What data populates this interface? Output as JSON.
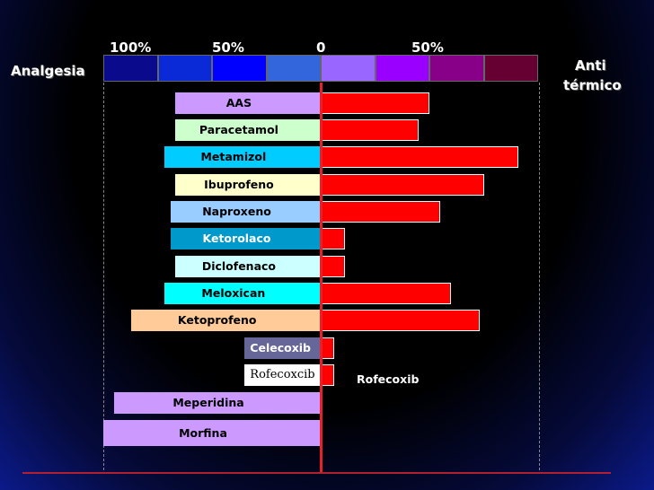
{
  "left_title": "Analgesia",
  "right_title": [
    "Anti",
    "térmico"
  ],
  "scale_labels": [
    "100%",
    "50%",
    "0",
    "50%"
  ],
  "scale_colors": [
    "#0a0a8c",
    "#0a2ad8",
    "#0000ff",
    "#3366dd",
    "#9966ff",
    "#9900ff",
    "#880088",
    "#660033"
  ],
  "chart_data": {
    "type": "bar",
    "orientation": "horizontal-diverging",
    "left_axis_label": "Analgesia",
    "right_axis_label": "Anti térmico",
    "categories": [
      "AAS",
      "Paracetamol",
      "Metamizol",
      "Ibuprofeno",
      "Naproxeno",
      "Ketorolaco",
      "Diclofenaco",
      "Meloxican",
      "Ketoprofeno",
      "Celecoxib",
      "Rofecoxcib",
      "Meperidina",
      "Morfina"
    ],
    "series": [
      {
        "values": [
          67,
          67,
          72,
          67,
          69,
          69,
          67,
          72,
          87,
          35,
          35,
          95,
          100
        ]
      },
      {
        "values": [
          50,
          45,
          91,
          75,
          55,
          11,
          11,
          60,
          73,
          6,
          6,
          0,
          0
        ]
      }
    ],
    "xlim": [
      -100,
      100
    ],
    "tick_labels": [
      "100%",
      "50%",
      "0",
      "50%"
    ],
    "label_colors": [
      "#cc99ff",
      "#ccffcc",
      "#00ccff",
      "#ffffcc",
      "#99ccff",
      "#0099cc",
      "#ccffff",
      "#00ffff",
      "#ffcc99",
      "#666699",
      "#ffffff",
      "#cc99ff",
      "#cc99ff"
    ],
    "label_text_colors": [
      "#000000",
      "#000000",
      "#000000",
      "#000000",
      "#000000",
      "#ffffff",
      "#000000",
      "#000000",
      "#000000",
      "#ffffff",
      "#000000",
      "#000000",
      "#000000"
    ],
    "annotations": [
      "Rofecoxib"
    ]
  }
}
